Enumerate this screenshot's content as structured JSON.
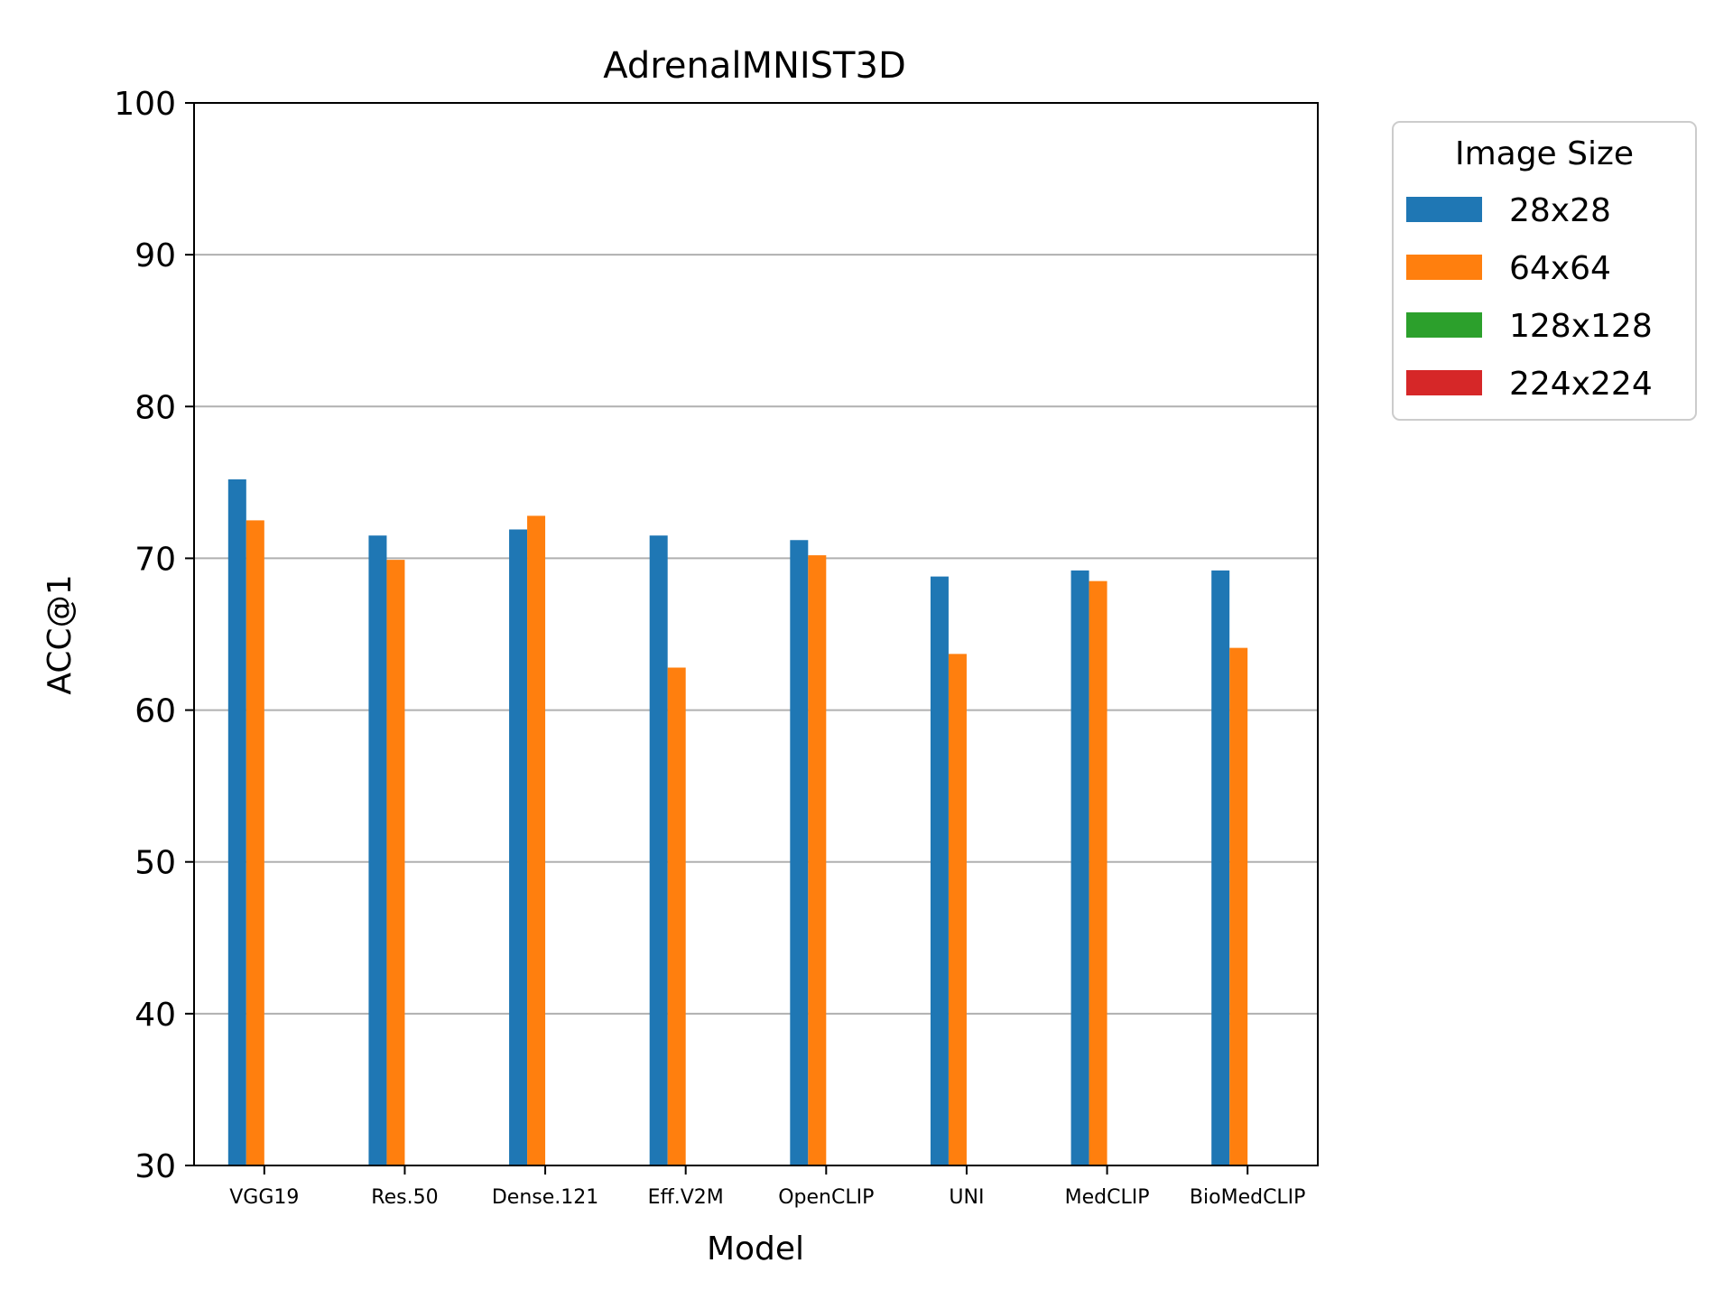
{
  "chart_data": {
    "type": "bar",
    "title": "AdrenalMNIST3D",
    "xlabel": "Model",
    "ylabel": "ACC@1",
    "ylim": [
      30,
      100
    ],
    "yticks": [
      30,
      40,
      50,
      60,
      70,
      80,
      90,
      100
    ],
    "grid": "y",
    "categories": [
      "VGG19",
      "Res.50",
      "Dense.121",
      "Eff.V2M",
      "OpenCLIP",
      "UNI",
      "MedCLIP",
      "BioMedCLIP"
    ],
    "legend": {
      "title": "Image Size",
      "placement": "outside-right"
    },
    "series": [
      {
        "name": "28x28",
        "color": "#1f77b4",
        "values": [
          75.2,
          71.5,
          71.9,
          71.5,
          71.2,
          68.8,
          69.2,
          69.2
        ]
      },
      {
        "name": "64x64",
        "color": "#ff7f0e",
        "values": [
          72.5,
          69.9,
          72.8,
          62.8,
          70.2,
          63.7,
          68.5,
          64.1
        ]
      },
      {
        "name": "128x128",
        "color": "#2ca02c",
        "values": [
          null,
          null,
          null,
          null,
          null,
          null,
          null,
          null
        ]
      },
      {
        "name": "224x224",
        "color": "#d62728",
        "values": [
          null,
          null,
          null,
          null,
          null,
          null,
          null,
          null
        ]
      }
    ]
  }
}
